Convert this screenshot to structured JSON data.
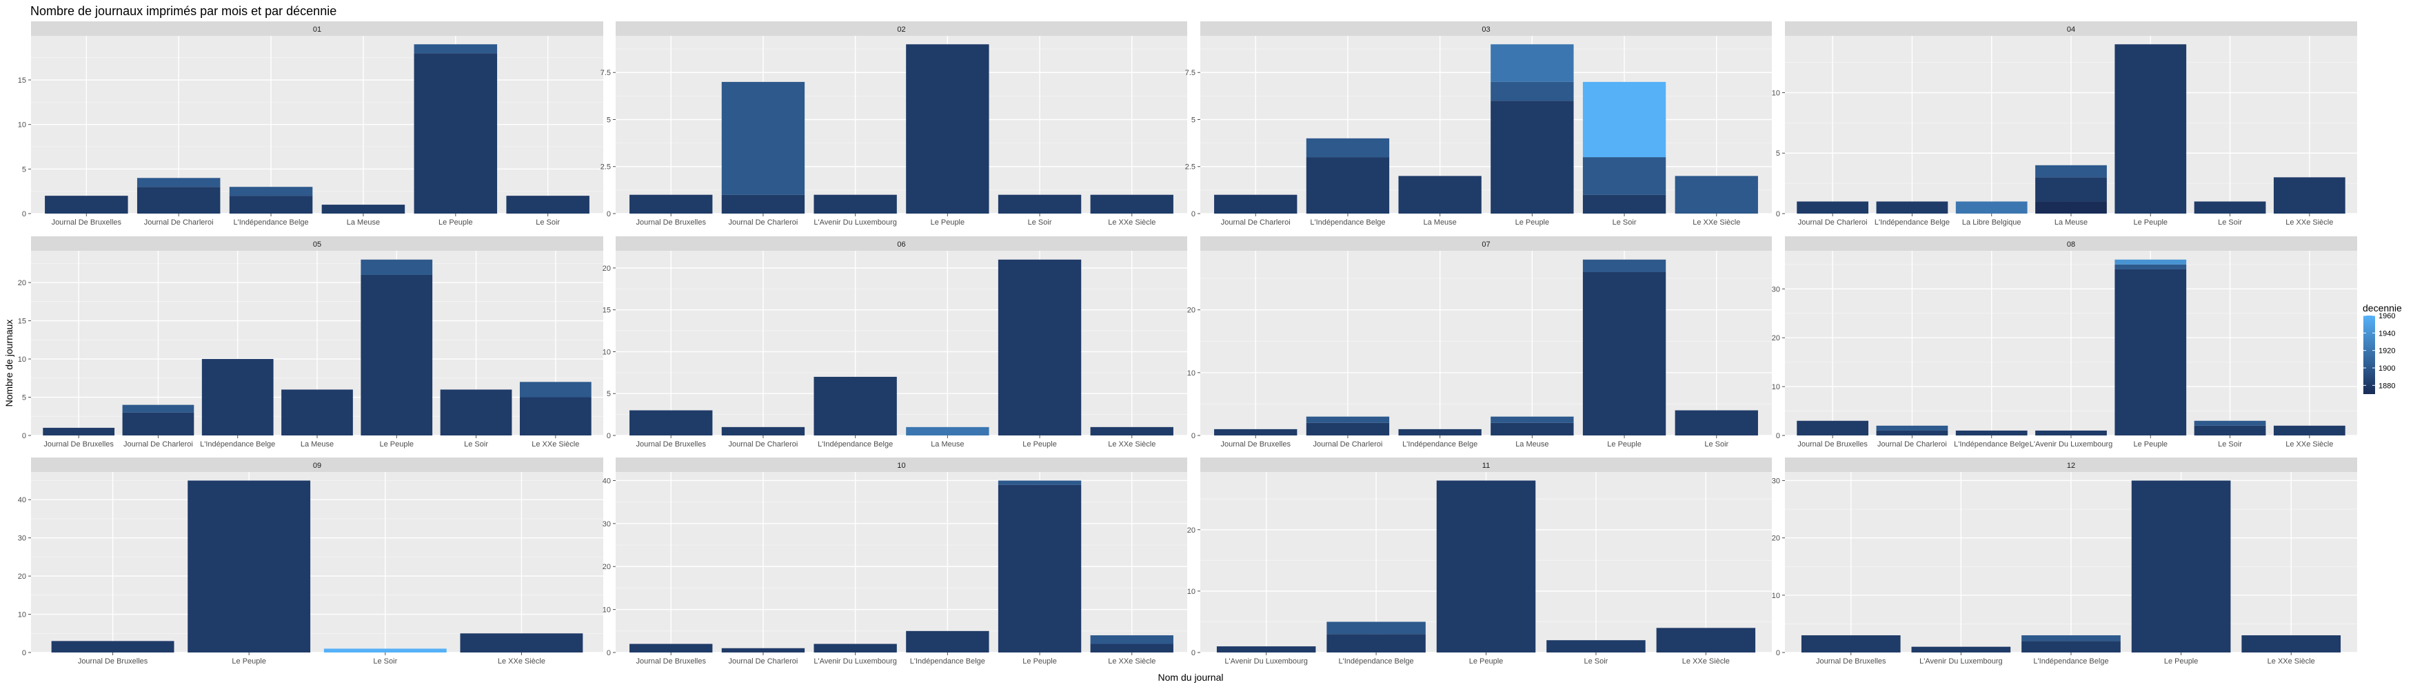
{
  "chart_data": {
    "type": "bar",
    "stacked": true,
    "faceted_by": "mois",
    "title": "Nombre de journaux imprimés par mois et par décennie",
    "xlabel": "Nom du journal",
    "ylabel": "Nombre de journaux",
    "legend": {
      "title": "decennie",
      "position": "right",
      "labels": [
        "1960",
        "1940",
        "1920",
        "1900",
        "1880"
      ],
      "colors": [
        "#56b1f7",
        "#4791d2",
        "#3a73ae",
        "#2d568b",
        "#1f3b68"
      ],
      "range": [
        1870,
        1960
      ]
    },
    "facets": [
      {
        "label": "01",
        "ylim": [
          0,
          19.95
        ],
        "yticks": [
          0,
          5,
          10,
          15
        ],
        "bars": [
          {
            "category": "Journal De Bruxelles",
            "segments": [
              {
                "decennie": 1880,
                "value": 2
              }
            ]
          },
          {
            "category": "Journal De Charleroi",
            "segments": [
              {
                "decennie": 1880,
                "value": 3
              },
              {
                "decennie": 1900,
                "value": 1
              }
            ]
          },
          {
            "category": "L'Indépendance Belge",
            "segments": [
              {
                "decennie": 1880,
                "value": 2
              },
              {
                "decennie": 1900,
                "value": 1
              }
            ]
          },
          {
            "category": "La Meuse",
            "segments": [
              {
                "decennie": 1880,
                "value": 1
              }
            ]
          },
          {
            "category": "Le Peuple",
            "segments": [
              {
                "decennie": 1880,
                "value": 18
              },
              {
                "decennie": 1900,
                "value": 1
              }
            ]
          },
          {
            "category": "Le Soir",
            "segments": [
              {
                "decennie": 1880,
                "value": 2
              }
            ]
          }
        ]
      },
      {
        "label": "02",
        "ylim": [
          0,
          9.45
        ],
        "yticks": [
          0,
          2.5,
          5,
          7.5
        ],
        "bars": [
          {
            "category": "Journal De Bruxelles",
            "segments": [
              {
                "decennie": 1880,
                "value": 1
              }
            ]
          },
          {
            "category": "Journal De Charleroi",
            "segments": [
              {
                "decennie": 1880,
                "value": 1
              },
              {
                "decennie": 1900,
                "value": 6
              }
            ]
          },
          {
            "category": "L'Avenir Du Luxembourg",
            "segments": [
              {
                "decennie": 1880,
                "value": 1
              }
            ]
          },
          {
            "category": "Le Peuple",
            "segments": [
              {
                "decennie": 1880,
                "value": 9
              }
            ]
          },
          {
            "category": "Le Soir",
            "segments": [
              {
                "decennie": 1880,
                "value": 1
              }
            ]
          },
          {
            "category": "Le XXe Siècle",
            "segments": [
              {
                "decennie": 1880,
                "value": 1
              }
            ]
          }
        ]
      },
      {
        "label": "03",
        "ylim": [
          0,
          9.45
        ],
        "yticks": [
          0,
          2.5,
          5,
          7.5
        ],
        "bars": [
          {
            "category": "Journal De Charleroi",
            "segments": [
              {
                "decennie": 1880,
                "value": 1
              }
            ]
          },
          {
            "category": "L'Indépendance Belge",
            "segments": [
              {
                "decennie": 1880,
                "value": 3
              },
              {
                "decennie": 1900,
                "value": 1
              }
            ]
          },
          {
            "category": "La Meuse",
            "segments": [
              {
                "decennie": 1880,
                "value": 2
              }
            ]
          },
          {
            "category": "Le Peuple",
            "segments": [
              {
                "decennie": 1880,
                "value": 6
              },
              {
                "decennie": 1900,
                "value": 1
              },
              {
                "decennie": 1920,
                "value": 2
              }
            ]
          },
          {
            "category": "Le Soir",
            "segments": [
              {
                "decennie": 1880,
                "value": 1
              },
              {
                "decennie": 1900,
                "value": 2
              },
              {
                "decennie": 1960,
                "value": 4
              }
            ]
          },
          {
            "category": "Le XXe Siècle",
            "segments": [
              {
                "decennie": 1900,
                "value": 2
              }
            ]
          }
        ]
      },
      {
        "label": "04",
        "ylim": [
          0,
          14.7
        ],
        "yticks": [
          0,
          5,
          10
        ],
        "bars": [
          {
            "category": "Journal De Charleroi",
            "segments": [
              {
                "decennie": 1880,
                "value": 1
              }
            ]
          },
          {
            "category": "L'Indépendance Belge",
            "segments": [
              {
                "decennie": 1880,
                "value": 1
              }
            ]
          },
          {
            "category": "La Libre Belgique",
            "segments": [
              {
                "decennie": 1920,
                "value": 1
              }
            ]
          },
          {
            "category": "La Meuse",
            "segments": [
              {
                "decennie": 1870,
                "value": 1
              },
              {
                "decennie": 1880,
                "value": 2
              },
              {
                "decennie": 1900,
                "value": 1
              }
            ]
          },
          {
            "category": "Le Peuple",
            "segments": [
              {
                "decennie": 1880,
                "value": 14
              }
            ]
          },
          {
            "category": "Le Soir",
            "segments": [
              {
                "decennie": 1880,
                "value": 1
              }
            ]
          },
          {
            "category": "Le XXe Siècle",
            "segments": [
              {
                "decennie": 1880,
                "value": 3
              }
            ]
          }
        ]
      },
      {
        "label": "05",
        "ylim": [
          0,
          24.15
        ],
        "yticks": [
          0,
          5,
          10,
          15,
          20
        ],
        "bars": [
          {
            "category": "Journal De Bruxelles",
            "segments": [
              {
                "decennie": 1880,
                "value": 1
              }
            ]
          },
          {
            "category": "Journal De Charleroi",
            "segments": [
              {
                "decennie": 1880,
                "value": 3
              },
              {
                "decennie": 1900,
                "value": 1
              }
            ]
          },
          {
            "category": "L'Indépendance Belge",
            "segments": [
              {
                "decennie": 1880,
                "value": 10
              }
            ]
          },
          {
            "category": "La Meuse",
            "segments": [
              {
                "decennie": 1880,
                "value": 6
              }
            ]
          },
          {
            "category": "Le Peuple",
            "segments": [
              {
                "decennie": 1880,
                "value": 21
              },
              {
                "decennie": 1900,
                "value": 2
              }
            ]
          },
          {
            "category": "Le Soir",
            "segments": [
              {
                "decennie": 1880,
                "value": 6
              }
            ]
          },
          {
            "category": "Le XXe Siècle",
            "segments": [
              {
                "decennie": 1880,
                "value": 5
              },
              {
                "decennie": 1900,
                "value": 2
              }
            ]
          }
        ]
      },
      {
        "label": "06",
        "ylim": [
          0,
          22.05
        ],
        "yticks": [
          0,
          5,
          10,
          15,
          20
        ],
        "bars": [
          {
            "category": "Journal De Bruxelles",
            "segments": [
              {
                "decennie": 1880,
                "value": 3
              }
            ]
          },
          {
            "category": "Journal De Charleroi",
            "segments": [
              {
                "decennie": 1880,
                "value": 1
              }
            ]
          },
          {
            "category": "L'Indépendance Belge",
            "segments": [
              {
                "decennie": 1880,
                "value": 7
              }
            ]
          },
          {
            "category": "La Meuse",
            "segments": [
              {
                "decennie": 1920,
                "value": 1
              }
            ]
          },
          {
            "category": "Le Peuple",
            "segments": [
              {
                "decennie": 1880,
                "value": 21
              }
            ]
          },
          {
            "category": "Le XXe Siècle",
            "segments": [
              {
                "decennie": 1880,
                "value": 1
              }
            ]
          }
        ]
      },
      {
        "label": "07",
        "ylim": [
          0,
          29.4
        ],
        "yticks": [
          0,
          10,
          20
        ],
        "bars": [
          {
            "category": "Journal De Bruxelles",
            "segments": [
              {
                "decennie": 1880,
                "value": 1
              }
            ]
          },
          {
            "category": "Journal De Charleroi",
            "segments": [
              {
                "decennie": 1880,
                "value": 2
              },
              {
                "decennie": 1900,
                "value": 1
              }
            ]
          },
          {
            "category": "L'Indépendance Belge",
            "segments": [
              {
                "decennie": 1880,
                "value": 1
              }
            ]
          },
          {
            "category": "La Meuse",
            "segments": [
              {
                "decennie": 1880,
                "value": 2
              },
              {
                "decennie": 1900,
                "value": 1
              }
            ]
          },
          {
            "category": "Le Peuple",
            "segments": [
              {
                "decennie": 1880,
                "value": 26
              },
              {
                "decennie": 1900,
                "value": 2
              }
            ]
          },
          {
            "category": "Le Soir",
            "segments": [
              {
                "decennie": 1880,
                "value": 4
              }
            ]
          }
        ]
      },
      {
        "label": "08",
        "ylim": [
          0,
          37.8
        ],
        "yticks": [
          0,
          10,
          20,
          30
        ],
        "bars": [
          {
            "category": "Journal De Bruxelles",
            "segments": [
              {
                "decennie": 1880,
                "value": 3
              }
            ]
          },
          {
            "category": "Journal De Charleroi",
            "segments": [
              {
                "decennie": 1880,
                "value": 1
              },
              {
                "decennie": 1900,
                "value": 1
              }
            ]
          },
          {
            "category": "L'Indépendance Belge",
            "segments": [
              {
                "decennie": 1880,
                "value": 1
              }
            ]
          },
          {
            "category": "L'Avenir Du Luxembourg",
            "segments": [
              {
                "decennie": 1880,
                "value": 1
              }
            ]
          },
          {
            "category": "Le Peuple",
            "segments": [
              {
                "decennie": 1880,
                "value": 34
              },
              {
                "decennie": 1900,
                "value": 1
              },
              {
                "decennie": 1940,
                "value": 1
              }
            ]
          },
          {
            "category": "Le Soir",
            "segments": [
              {
                "decennie": 1880,
                "value": 2
              },
              {
                "decennie": 1900,
                "value": 1
              }
            ]
          },
          {
            "category": "Le XXe Siècle",
            "segments": [
              {
                "decennie": 1880,
                "value": 2
              }
            ]
          }
        ]
      },
      {
        "label": "09",
        "ylim": [
          0,
          47.25
        ],
        "yticks": [
          0,
          10,
          20,
          30,
          40
        ],
        "bars": [
          {
            "category": "Journal De Bruxelles",
            "segments": [
              {
                "decennie": 1880,
                "value": 3
              }
            ]
          },
          {
            "category": "Le Peuple",
            "segments": [
              {
                "decennie": 1880,
                "value": 45
              }
            ]
          },
          {
            "category": "Le Soir",
            "segments": [
              {
                "decennie": 1960,
                "value": 1
              }
            ]
          },
          {
            "category": "Le XXe Siècle",
            "segments": [
              {
                "decennie": 1880,
                "value": 5
              }
            ]
          }
        ]
      },
      {
        "label": "10",
        "ylim": [
          0,
          42
        ],
        "yticks": [
          0,
          10,
          20,
          30,
          40
        ],
        "bars": [
          {
            "category": "Journal De Bruxelles",
            "segments": [
              {
                "decennie": 1880,
                "value": 2
              }
            ]
          },
          {
            "category": "Journal De Charleroi",
            "segments": [
              {
                "decennie": 1880,
                "value": 1
              }
            ]
          },
          {
            "category": "L'Avenir Du Luxembourg",
            "segments": [
              {
                "decennie": 1880,
                "value": 2
              }
            ]
          },
          {
            "category": "L'Indépendance Belge",
            "segments": [
              {
                "decennie": 1880,
                "value": 5
              }
            ]
          },
          {
            "category": "Le Peuple",
            "segments": [
              {
                "decennie": 1880,
                "value": 39
              },
              {
                "decennie": 1900,
                "value": 1
              }
            ]
          },
          {
            "category": "Le XXe Siècle",
            "segments": [
              {
                "decennie": 1880,
                "value": 2
              },
              {
                "decennie": 1900,
                "value": 2
              }
            ]
          }
        ]
      },
      {
        "label": "11",
        "ylim": [
          0,
          29.4
        ],
        "yticks": [
          0,
          10,
          20
        ],
        "bars": [
          {
            "category": "L'Avenir Du Luxembourg",
            "segments": [
              {
                "decennie": 1880,
                "value": 1
              }
            ]
          },
          {
            "category": "L'Indépendance Belge",
            "segments": [
              {
                "decennie": 1880,
                "value": 3
              },
              {
                "decennie": 1900,
                "value": 2
              }
            ]
          },
          {
            "category": "Le Peuple",
            "segments": [
              {
                "decennie": 1880,
                "value": 28
              }
            ]
          },
          {
            "category": "Le Soir",
            "segments": [
              {
                "decennie": 1880,
                "value": 2
              }
            ]
          },
          {
            "category": "Le XXe Siècle",
            "segments": [
              {
                "decennie": 1880,
                "value": 4
              }
            ]
          }
        ]
      },
      {
        "label": "12",
        "ylim": [
          0,
          31.5
        ],
        "yticks": [
          0,
          10,
          20,
          30
        ],
        "bars": [
          {
            "category": "Journal De Bruxelles",
            "segments": [
              {
                "decennie": 1880,
                "value": 3
              }
            ]
          },
          {
            "category": "L'Avenir Du Luxembourg",
            "segments": [
              {
                "decennie": 1880,
                "value": 1
              }
            ]
          },
          {
            "category": "L'Indépendance Belge",
            "segments": [
              {
                "decennie": 1880,
                "value": 2
              },
              {
                "decennie": 1900,
                "value": 1
              }
            ]
          },
          {
            "category": "Le Peuple",
            "segments": [
              {
                "decennie": 1880,
                "value": 30
              }
            ]
          },
          {
            "category": "Le XXe Siècle",
            "segments": [
              {
                "decennie": 1880,
                "value": 3
              }
            ]
          }
        ]
      }
    ]
  }
}
